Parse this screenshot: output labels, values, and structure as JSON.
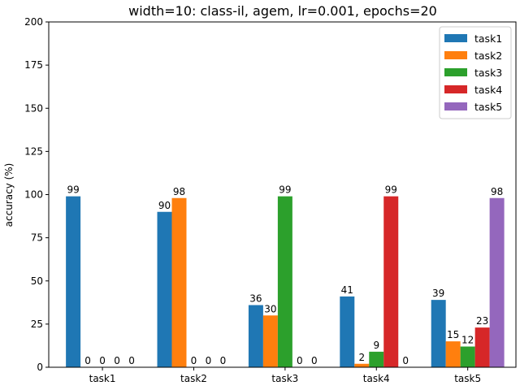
{
  "chart_data": {
    "type": "bar",
    "title": "width=10: class-il, agem, lr=0.001, epochs=20",
    "xlabel": "",
    "ylabel": "accuracy (%)",
    "ylim": [
      0,
      200
    ],
    "yticks": [
      0,
      25,
      50,
      75,
      100,
      125,
      150,
      175,
      200
    ],
    "categories": [
      "task1",
      "task2",
      "task3",
      "task4",
      "task5"
    ],
    "legend_position": "top-right",
    "grid": false,
    "series": [
      {
        "name": "task1",
        "color": "#1f77b4",
        "values": [
          99,
          90,
          36,
          41,
          39
        ]
      },
      {
        "name": "task2",
        "color": "#ff7f0e",
        "values": [
          0,
          98,
          30,
          2,
          15
        ]
      },
      {
        "name": "task3",
        "color": "#2ca02c",
        "values": [
          0,
          0,
          99,
          9,
          12
        ]
      },
      {
        "name": "task4",
        "color": "#d62728",
        "values": [
          0,
          0,
          0,
          99,
          23
        ]
      },
      {
        "name": "task5",
        "color": "#9467bd",
        "values": [
          0,
          0,
          0,
          0,
          98
        ]
      }
    ]
  }
}
